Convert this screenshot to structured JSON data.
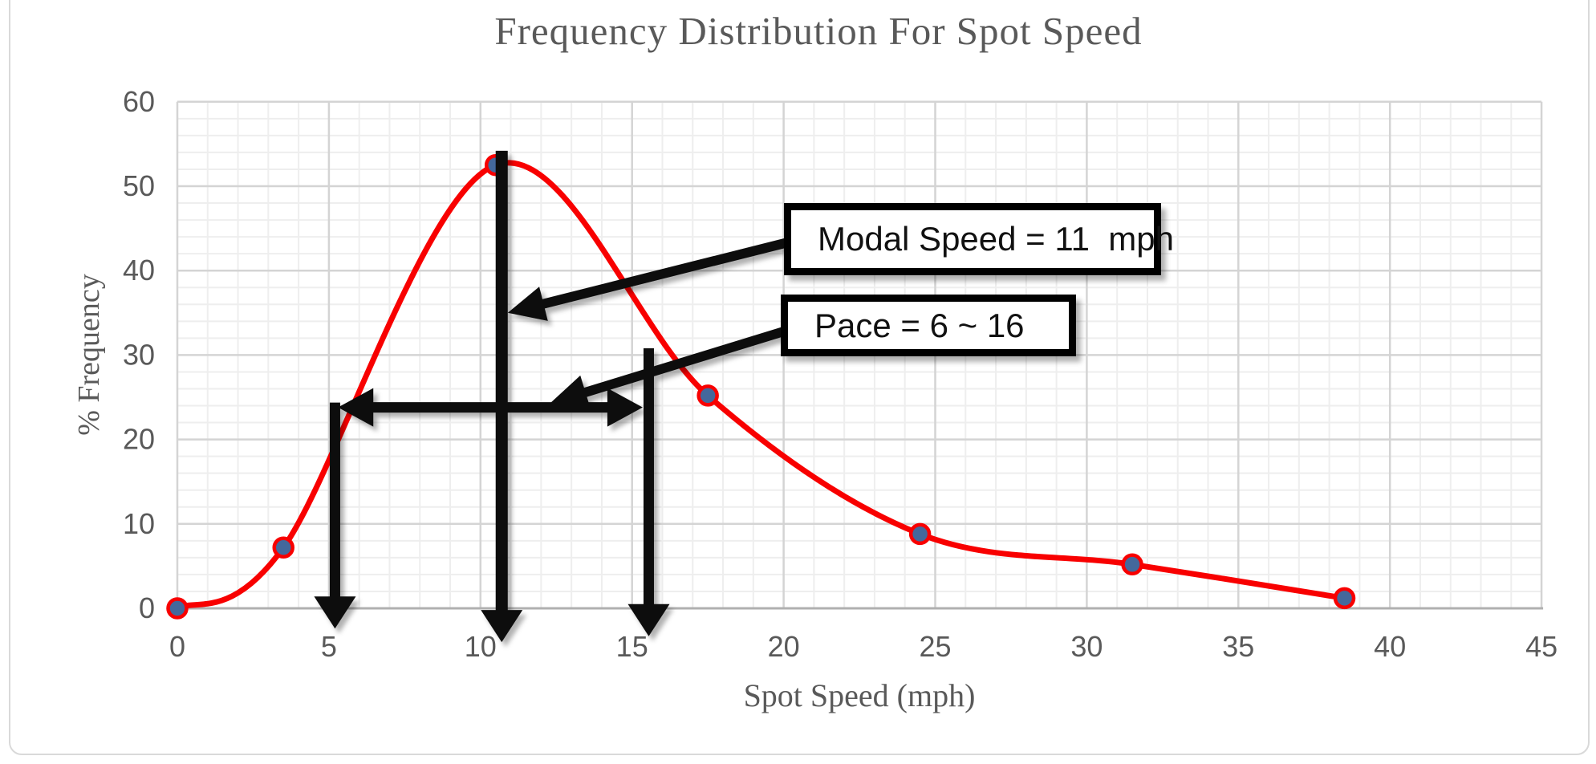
{
  "window": {
    "description": "Excel-style frequency distribution chart"
  },
  "colors": {
    "curve": "#f80000",
    "marker_fill": "#44689c",
    "marker_stroke": "#f80000",
    "annotation_black": "#0a0a0a",
    "grid_minor": "#eeeeee",
    "grid_major": "#d4d4d4",
    "axis_line": "#b0b0b0",
    "text_gray": "#595959",
    "chart_border": "#d9d9d9"
  },
  "chart_data": {
    "type": "line",
    "line_style": "smooth",
    "title": "Frequency Distribution For Spot Speed",
    "xlabel": "Spot Speed (mph)",
    "ylabel": "% Frequency",
    "x": [
      0,
      3.5,
      10.5,
      17.5,
      24.5,
      31.5,
      38.5
    ],
    "y": [
      0,
      7.2,
      52.5,
      25.2,
      8.8,
      5.2,
      1.2
    ],
    "xlim": [
      0,
      45
    ],
    "ylim": [
      0,
      60
    ],
    "x_ticks": [
      0,
      5,
      10,
      15,
      20,
      25,
      30,
      35,
      40,
      45
    ],
    "y_ticks": [
      0,
      10,
      20,
      30,
      40,
      50,
      60
    ],
    "grid": {
      "x_major": 5,
      "x_minor": 1,
      "y_major": 10,
      "y_minor": 2,
      "visible": true
    },
    "legend": "none",
    "annotations": {
      "modal_speed": {
        "label": "Modal Speed = 11  mph",
        "line_x": 10.7,
        "line_y_top": 54.2,
        "line_y_bottom": -4.0,
        "callout_tip": {
          "x": 10.9,
          "y": 35.0
        }
      },
      "pace": {
        "label": "Pace = 6 ~ 16",
        "range_y": 23.8,
        "range_x_start": 5.3,
        "range_x_end": 15.35,
        "left_drop_x": 5.2,
        "left_drop_top": 23.8,
        "left_drop_bottom": -2.4,
        "right_drop_x": 15.55,
        "right_drop_top": 30.8,
        "right_drop_bottom": -3.3,
        "callout_tip": {
          "x": 12.3,
          "y": 24.3
        }
      }
    }
  }
}
